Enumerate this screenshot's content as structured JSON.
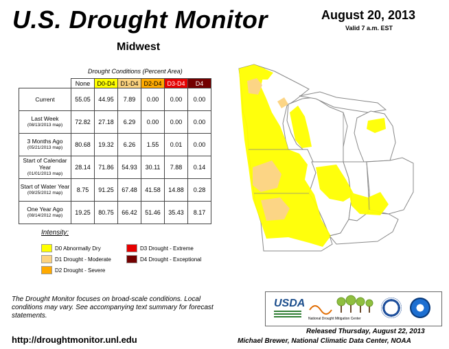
{
  "header": {
    "title": "U.S. Drought Monitor",
    "region": "Midwest",
    "date": "August 20, 2013",
    "valid": "Valid 7 a.m. EST"
  },
  "table": {
    "caption": "Drought Conditions (Percent Area)",
    "columns": [
      "None",
      "D0-D4",
      "D1-D4",
      "D2-D4",
      "D3-D4",
      "D4"
    ],
    "rows": [
      {
        "label": "Current",
        "sub": "",
        "values": [
          "55.05",
          "44.95",
          "7.89",
          "0.00",
          "0.00",
          "0.00"
        ]
      },
      {
        "label": "Last Week",
        "sub": "(08/13/2013 map)",
        "values": [
          "72.82",
          "27.18",
          "6.29",
          "0.00",
          "0.00",
          "0.00"
        ]
      },
      {
        "label": "3 Months Ago",
        "sub": "(05/21/2013 map)",
        "values": [
          "80.68",
          "19.32",
          "6.26",
          "1.55",
          "0.01",
          "0.00"
        ]
      },
      {
        "label": "Start of Calendar Year",
        "sub": "(01/01/2013 map)",
        "values": [
          "28.14",
          "71.86",
          "54.93",
          "30.11",
          "7.88",
          "0.14"
        ]
      },
      {
        "label": "Start of Water Year",
        "sub": "(09/25/2012 map)",
        "values": [
          "8.75",
          "91.25",
          "67.48",
          "41.58",
          "14.88",
          "0.28"
        ]
      },
      {
        "label": "One Year Ago",
        "sub": "(08/14/2012 map)",
        "values": [
          "19.25",
          "80.75",
          "66.42",
          "51.46",
          "35.43",
          "8.17"
        ]
      }
    ]
  },
  "legend": {
    "title": "Intensity:",
    "items": [
      {
        "label": "D0 Abnormally Dry",
        "color": "#ffff00"
      },
      {
        "label": "D1 Drought - Moderate",
        "color": "#fcd37f"
      },
      {
        "label": "D2 Drought - Severe",
        "color": "#ffaa00"
      },
      {
        "label": "D3 Drought - Extreme",
        "color": "#e60000"
      },
      {
        "label": "D4 Drought - Exceptional",
        "color": "#730000"
      }
    ]
  },
  "footer": {
    "note": "The Drought Monitor focuses on broad-scale conditions. Local conditions may vary. See accompanying text summary for forecast statements.",
    "url": "http://droughtmonitor.unl.edu",
    "released": "Released Thursday, August 22, 2013",
    "author": "Michael Brewer, National Climatic Data Center, NOAA"
  },
  "logos": {
    "usda": "USDA",
    "ndmc": "National Drought Mitigation Center"
  }
}
